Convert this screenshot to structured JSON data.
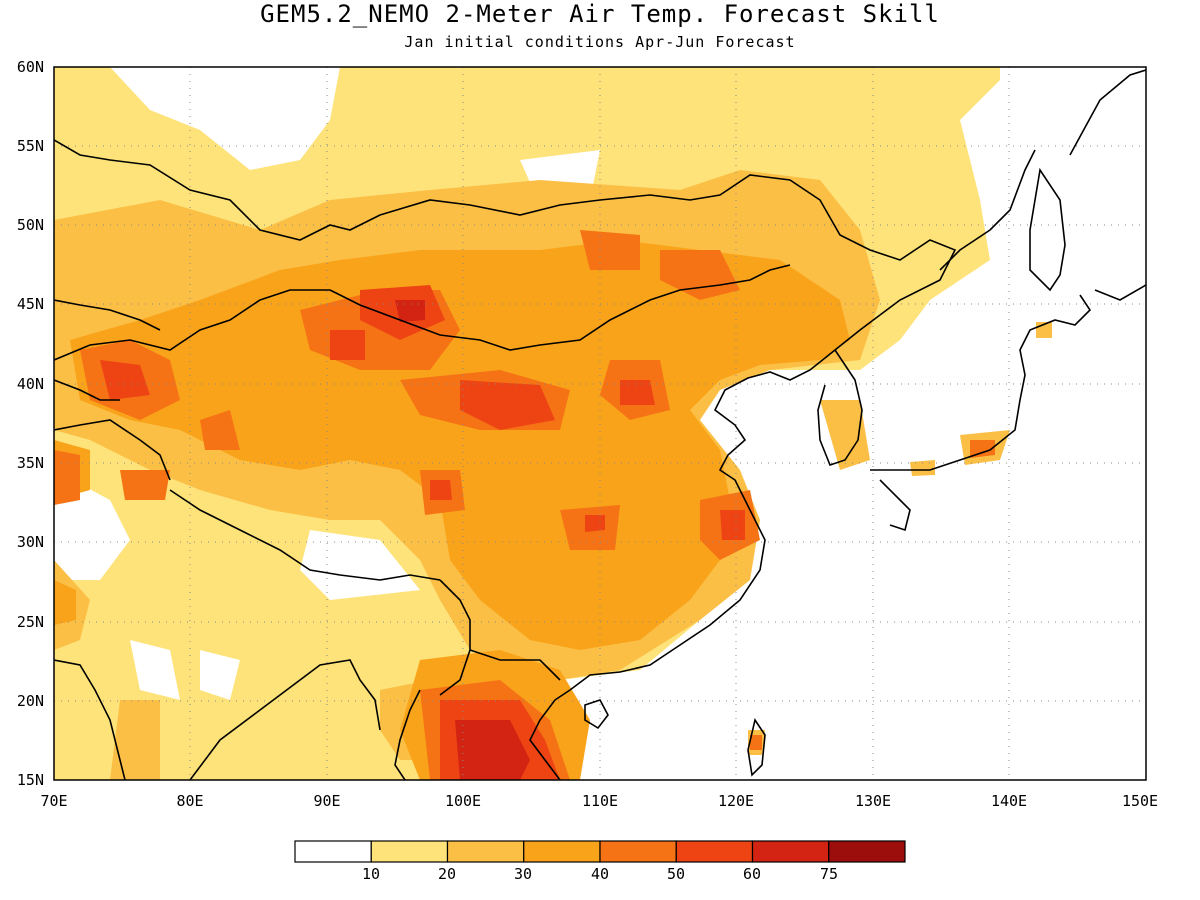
{
  "title": "GEM5.2_NEMO 2-Meter Air Temp. Forecast Skill",
  "subtitle": "Jan initial conditions  Apr-Jun Forecast",
  "map": {
    "lat_ticks": [
      "60N",
      "55N",
      "50N",
      "45N",
      "40N",
      "35N",
      "30N",
      "25N",
      "20N",
      "15N"
    ],
    "lon_ticks": [
      "70E",
      "80E",
      "90E",
      "100E",
      "110E",
      "120E",
      "130E",
      "140E",
      "150E"
    ],
    "lat_range": [
      15,
      60
    ],
    "lon_range": [
      70,
      150
    ],
    "grid": true
  },
  "colorbar": {
    "labels": [
      "10",
      "20",
      "30",
      "40",
      "50",
      "60",
      "75"
    ],
    "colors": [
      "#ffffff",
      "#fde37a",
      "#fbbf45",
      "#f9a31b",
      "#f57314",
      "#ee4414",
      "#d32312",
      "#9b0e0b"
    ]
  }
}
